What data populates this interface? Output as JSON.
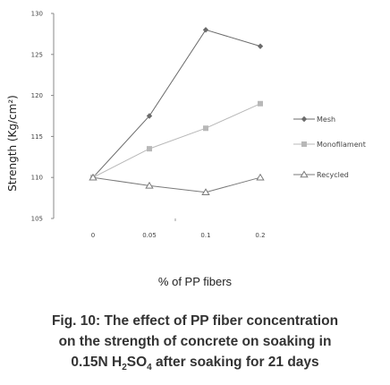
{
  "chart_data": {
    "type": "line",
    "categories": [
      "0",
      "0.05",
      "0.1",
      "0.2"
    ],
    "ylim": [
      105,
      130
    ],
    "yticks": [
      "105",
      "110",
      "115",
      "120",
      "125",
      "130"
    ],
    "ylabel": "Strength (Kg/cm²)",
    "xlabel": "% of PP fibers",
    "grid": false,
    "legend_position": "right",
    "series": [
      {
        "name": "Mesh",
        "values": [
          110,
          117.5,
          128,
          126
        ],
        "marker": "diamond",
        "color": "#6b6b6b"
      },
      {
        "name": "Monofilament",
        "values": [
          110,
          113.5,
          116,
          119
        ],
        "marker": "square",
        "color": "#b8b8b8"
      },
      {
        "name": "Recycled",
        "values": [
          110,
          109,
          108.2,
          110
        ],
        "marker": "triangle",
        "color": "#7a7a7a"
      }
    ]
  },
  "caption": {
    "line1": "Fig. 10: The effect of PP fiber concentration",
    "line2": "on the strength of concrete on soaking in",
    "line3_prefix": "0.15N H",
    "line3_sub1": "2",
    "line3_mid": "SO",
    "line3_sub2": "4",
    "line3_suffix": " after soaking for 21 days"
  }
}
